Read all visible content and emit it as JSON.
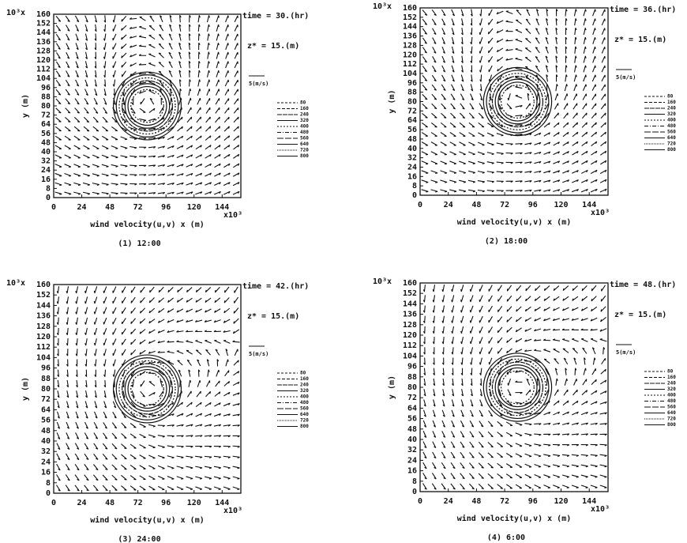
{
  "chart_data": [
    {
      "type": "quiver",
      "time_label": "time = 30.(hr)",
      "height_label": "z* = 15.(m)",
      "scale_label": "5(m/s)",
      "x_label": "wind velocity(u,v)  x (m)",
      "y_label": "y (m)",
      "x_multiplier": "x10³",
      "y_multiplier": "10³x",
      "caption": "(1) 12:00",
      "xlim": [
        0,
        160
      ],
      "ylim": [
        0,
        160
      ],
      "xticks": [
        0,
        24,
        48,
        72,
        96,
        120,
        144
      ],
      "yticks": [
        0,
        8,
        16,
        24,
        32,
        40,
        48,
        56,
        64,
        72,
        80,
        88,
        96,
        104,
        112,
        120,
        128,
        136,
        144,
        152,
        160
      ],
      "contour_levels": [
        80,
        160,
        240,
        320,
        400,
        480,
        560,
        640,
        720,
        800
      ]
    },
    {
      "type": "quiver",
      "time_label": "time = 36.(hr)",
      "height_label": "z* = 15.(m)",
      "scale_label": "5(m/s)",
      "x_label": "wind velocity(u,v)  x (m)",
      "y_label": "y (m)",
      "x_multiplier": "x10³",
      "y_multiplier": "10³x",
      "caption": "(2) 18:00",
      "xlim": [
        0,
        160
      ],
      "ylim": [
        0,
        160
      ],
      "xticks": [
        0,
        24,
        48,
        72,
        96,
        120,
        144
      ],
      "yticks": [
        0,
        8,
        16,
        24,
        32,
        40,
        48,
        56,
        64,
        72,
        80,
        88,
        96,
        104,
        112,
        120,
        128,
        136,
        144,
        152,
        160
      ],
      "contour_levels": [
        80,
        160,
        240,
        320,
        400,
        480,
        560,
        640,
        720,
        800
      ]
    },
    {
      "type": "quiver",
      "time_label": "time = 42.(hr)",
      "height_label": "z* = 15.(m)",
      "scale_label": "5(m/s)",
      "x_label": "wind velocity(u,v)  x (m)",
      "y_label": "y (m)",
      "x_multiplier": "x10³",
      "y_multiplier": "10³x",
      "caption": "(3) 24:00",
      "xlim": [
        0,
        160
      ],
      "ylim": [
        0,
        160
      ],
      "xticks": [
        0,
        24,
        48,
        72,
        96,
        120,
        144
      ],
      "yticks": [
        0,
        8,
        16,
        24,
        32,
        40,
        48,
        56,
        64,
        72,
        80,
        88,
        96,
        104,
        112,
        120,
        128,
        136,
        144,
        152,
        160
      ],
      "contour_levels": [
        80,
        160,
        240,
        320,
        400,
        480,
        560,
        640,
        720,
        800
      ]
    },
    {
      "type": "quiver",
      "time_label": "time = 48.(hr)",
      "height_label": "z* = 15.(m)",
      "scale_label": "5(m/s)",
      "x_label": "wind velocity(u,v)  x (m)",
      "y_label": "y (m)",
      "x_multiplier": "x10³",
      "y_multiplier": "10³x",
      "caption": "(4) 6:00",
      "xlim": [
        0,
        160
      ],
      "ylim": [
        0,
        160
      ],
      "xticks": [
        0,
        24,
        48,
        72,
        96,
        120,
        144
      ],
      "yticks": [
        0,
        8,
        16,
        24,
        32,
        40,
        48,
        56,
        64,
        72,
        80,
        88,
        96,
        104,
        112,
        120,
        128,
        136,
        144,
        152,
        160
      ],
      "contour_levels": [
        80,
        160,
        240,
        320,
        400,
        480,
        560,
        640,
        720,
        800
      ]
    }
  ]
}
